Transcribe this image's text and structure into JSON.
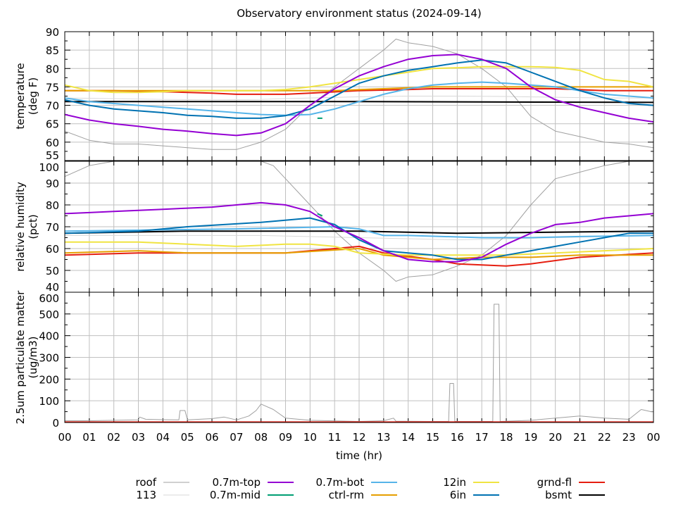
{
  "chart_data": {
    "type": "line",
    "title": "Observatory environment status (2024-09-14)",
    "xlabel": "time (hr)",
    "xlim": [
      0,
      24
    ],
    "x_tick_labels": [
      "00",
      "01",
      "02",
      "03",
      "04",
      "05",
      "06",
      "07",
      "08",
      "09",
      "10",
      "11",
      "12",
      "13",
      "14",
      "15",
      "16",
      "17",
      "18",
      "19",
      "20",
      "21",
      "22",
      "23",
      "00"
    ],
    "grid": true,
    "legend_placement": "bottom",
    "colors": {
      "roof": "#a0a0a0",
      "113": "#d8d8d8",
      "0.7m-top": "#9400d3",
      "0.7m-mid": "#009e73",
      "0.7m-bot": "#56b4e9",
      "ctrl-rm": "#e69f00",
      "12in": "#f0e442",
      "6in": "#0072b2",
      "grnd-fl": "#e51e10",
      "bsmt": "#000000"
    },
    "legend": [
      {
        "name": "roof",
        "label": "roof"
      },
      {
        "name": "113",
        "label": "113"
      },
      {
        "name": "0.7m-top",
        "label": "0.7m-top"
      },
      {
        "name": "0.7m-mid",
        "label": "0.7m-mid"
      },
      {
        "name": "0.7m-bot",
        "label": "0.7m-bot"
      },
      {
        "name": "ctrl-rm",
        "label": "ctrl-rm"
      },
      {
        "name": "12in",
        "label": "12in"
      },
      {
        "name": "6in",
        "label": "6in"
      },
      {
        "name": "grnd-fl",
        "label": "grnd-fl"
      },
      {
        "name": "bsmt",
        "label": "bsmt"
      }
    ],
    "panels": [
      {
        "ylabel": "temperature (deg F)",
        "ylabel_lines": [
          "temperature",
          "(deg F)"
        ],
        "ylim": [
          55,
          90
        ],
        "yticks": [
          55,
          60,
          65,
          70,
          75,
          80,
          85,
          90
        ],
        "ytick_labels": [
          "55",
          "60",
          "65",
          "70",
          "75",
          "80",
          "85",
          "90"
        ],
        "series": [
          {
            "name": "113",
            "x": [
              0,
              2,
              4,
              6,
              8,
              10,
              12,
              14,
              16,
              18,
              20,
              22,
              24
            ],
            "y": [
              72,
              71.8,
              71.6,
              71.5,
              71.6,
              72,
              72.3,
              72.5,
              72.5,
              72.4,
              72.2,
              72,
              72
            ]
          },
          {
            "name": "roof",
            "x": [
              0,
              1,
              2,
              3,
              4,
              5,
              6,
              7,
              8,
              9,
              10,
              11,
              12,
              13,
              13.5,
              14,
              15,
              16,
              17,
              18,
              19,
              20,
              21,
              22,
              23,
              24
            ],
            "y": [
              63,
              60.5,
              59.5,
              59.5,
              59,
              58.5,
              58,
              58,
              60,
              63.5,
              70,
              75,
              80,
              85,
              88,
              87,
              86,
              84,
              80,
              75,
              67,
              63,
              61.5,
              60,
              59.5,
              58.5
            ]
          },
          {
            "name": "bsmt",
            "x": [
              0,
              12,
              24
            ],
            "y": [
              71,
              71,
              70.8
            ]
          },
          {
            "name": "grnd-fl",
            "x": [
              0,
              2,
              4,
              6,
              7,
              8,
              9,
              10,
              12,
              14,
              15,
              17,
              20,
              22,
              24
            ],
            "y": [
              74,
              74,
              73.7,
              73.3,
              73,
              73,
              73,
              73.3,
              74,
              74.3,
              74.5,
              74.5,
              74.5,
              74,
              74
            ]
          },
          {
            "name": "ctrl-rm",
            "x": [
              0,
              4,
              8,
              11,
              13,
              15,
              24
            ],
            "y": [
              74,
              74,
              74,
              74,
              74.5,
              75,
              75
            ]
          },
          {
            "name": "12in",
            "x": [
              0,
              1,
              2,
              3,
              4,
              5,
              6,
              7,
              8,
              9,
              10,
              11,
              12,
              13,
              14,
              15,
              16,
              17,
              18,
              19,
              20,
              21,
              22,
              23,
              24
            ],
            "y": [
              75.5,
              74,
              73.5,
              73.5,
              73.7,
              74,
              74,
              74,
              74,
              74.3,
              75,
              76,
              77,
              78,
              79,
              80,
              80.2,
              80.5,
              80.5,
              80.5,
              80.3,
              79.5,
              77,
              76.5,
              75
            ]
          },
          {
            "name": "0.7m-bot",
            "x": [
              0,
              1,
              2,
              3,
              4,
              5,
              6,
              7,
              8,
              9,
              10,
              11,
              12,
              13,
              14,
              15,
              16,
              17,
              18,
              19,
              20,
              21,
              22,
              23,
              24
            ],
            "y": [
              72,
              71,
              70.5,
              70,
              69.5,
              69,
              68.5,
              68,
              67.5,
              67.3,
              67.5,
              69,
              71,
              73,
              74.5,
              75.5,
              76,
              76.3,
              76,
              75.5,
              75,
              74,
              73,
              72.5,
              72
            ]
          },
          {
            "name": "6in",
            "x": [
              0,
              1,
              2,
              3,
              4,
              5,
              6,
              7,
              8,
              9,
              10,
              11,
              12,
              13,
              14,
              15,
              16,
              17,
              18,
              19,
              20,
              21,
              22,
              23,
              24
            ],
            "y": [
              71.5,
              70,
              69,
              68.5,
              68,
              67.3,
              67,
              66.5,
              66.5,
              67.2,
              69,
              72.5,
              76,
              78,
              79.5,
              80.5,
              81.5,
              82.3,
              81.5,
              79,
              76.5,
              74,
              72,
              70.5,
              70
            ]
          },
          {
            "name": "0.7m-mid",
            "x": [
              10.3,
              10.5
            ],
            "y": [
              66.5,
              66.5
            ]
          },
          {
            "name": "0.7m-top",
            "x": [
              0,
              1,
              2,
              3,
              4,
              5,
              6,
              7,
              8,
              9,
              10,
              11,
              12,
              13,
              14,
              15,
              16,
              17,
              18,
              19,
              20,
              21,
              22,
              23,
              24
            ],
            "y": [
              67.5,
              66,
              65,
              64.3,
              63.5,
              63,
              62.3,
              61.8,
              62.5,
              65,
              70,
              74.5,
              78,
              80.5,
              82.5,
              83.5,
              83.8,
              82.5,
              80,
              75,
              71.5,
              69.5,
              68,
              66.5,
              65.5
            ]
          }
        ]
      },
      {
        "ylabel": "relative humidity (pct)",
        "ylabel_lines": [
          "relative humidity",
          "(pct)"
        ],
        "ylim": [
          40,
          100
        ],
        "yticks": [
          40,
          50,
          60,
          70,
          80,
          90,
          100
        ],
        "ytick_labels": [
          "40",
          "50",
          "60",
          "70",
          "80",
          "90",
          "100"
        ],
        "series": [
          {
            "name": "113",
            "x": [
              0,
              4,
              8,
              12,
              16,
              20,
              24
            ],
            "y": [
              66,
              66,
              66,
              65,
              64,
              65,
              66
            ]
          },
          {
            "name": "roof",
            "x": [
              0,
              1,
              2,
              8,
              8.5,
              9,
              10,
              11,
              12,
              13,
              13.5,
              14,
              15,
              16,
              17,
              18,
              19,
              20,
              21,
              22,
              23,
              24
            ],
            "y": [
              93,
              98,
              100,
              100,
              98,
              92,
              80,
              68,
              58,
              50,
              45,
              47,
              48,
              52,
              57,
              66,
              80,
              92,
              95,
              98,
              100,
              100
            ]
          },
          {
            "name": "grnd-fl",
            "x": [
              0,
              3,
              9,
              12,
              13,
              15,
              16,
              18,
              19,
              21,
              24
            ],
            "y": [
              57,
              58,
              58,
              61,
              58,
              55,
              53,
              52,
              53,
              56,
              58
            ]
          },
          {
            "name": "ctrl-rm",
            "x": [
              0,
              3,
              5,
              9,
              12,
              13,
              15,
              17,
              19,
              21,
              24
            ],
            "y": [
              58,
              59,
              58,
              58,
              60,
              57,
              55,
              56,
              56,
              57,
              57
            ]
          },
          {
            "name": "12in",
            "x": [
              0,
              3,
              5,
              7,
              9,
              10,
              11,
              12,
              14,
              16,
              18,
              20,
              22,
              24
            ],
            "y": [
              63,
              63,
              62,
              61,
              62,
              62,
              61,
              58,
              57,
              57,
              57,
              58,
              59,
              60
            ]
          },
          {
            "name": "bsmt",
            "x": [
              0,
              5,
              12,
              16,
              24
            ],
            "y": [
              67,
              68,
              68,
              67,
              68
            ]
          },
          {
            "name": "0.7m-bot",
            "x": [
              0,
              7,
              11,
              12,
              13,
              14,
              17,
              19,
              21,
              24
            ],
            "y": [
              68,
              69,
              70,
              69,
              66,
              66,
              65,
              65,
              65.5,
              66
            ]
          },
          {
            "name": "6in",
            "x": [
              0,
              3,
              5,
              8,
              10,
              11,
              12,
              13,
              14,
              15,
              16,
              17,
              18,
              19,
              20,
              21,
              22,
              23,
              24
            ],
            "y": [
              67,
              68,
              70,
              72,
              74,
              71,
              64,
              59,
              58,
              57,
              55,
              55,
              57,
              59,
              61,
              63,
              65,
              67,
              67
            ]
          },
          {
            "name": "0.7m-mid",
            "x": [
              10.3,
              10.5
            ],
            "y": [
              76,
              75
            ]
          },
          {
            "name": "0.7m-top",
            "x": [
              0,
              1,
              2,
              3,
              4,
              5,
              6,
              7,
              8,
              9,
              10,
              11,
              12,
              13,
              14,
              15,
              16,
              17,
              18,
              19,
              20,
              21,
              22,
              23,
              24
            ],
            "y": [
              76,
              76.5,
              77,
              77.5,
              78,
              78.5,
              79,
              80,
              81,
              80,
              77,
              70,
              65,
              59,
              55,
              54,
              54,
              56,
              62,
              67,
              71,
              72,
              74,
              75,
              76
            ]
          }
        ]
      },
      {
        "ylabel": "2.5um particulate matter (ug/m3)",
        "ylabel_lines": [
          "2.5um particulate matter",
          "(ug/m3)"
        ],
        "ylim": [
          0,
          600
        ],
        "yticks": [
          0,
          100,
          200,
          300,
          400,
          500,
          600
        ],
        "ytick_labels": [
          "0",
          "100",
          "200",
          "300",
          "400",
          "500",
          "600"
        ],
        "series": [
          {
            "name": "113",
            "x": [
              0,
              24
            ],
            "y": [
              3,
              3
            ]
          },
          {
            "name": "roof",
            "x": [
              0,
              1,
              2,
              3,
              3.05,
              3.3,
              4,
              4.65,
              4.7,
              4.9,
              5,
              6,
              6.5,
              7,
              7.5,
              7.8,
              8,
              8.5,
              9,
              10,
              12,
              13,
              13.4,
              13.5,
              15,
              15.65,
              15.7,
              15.85,
              15.9,
              17.45,
              17.5,
              17.7,
              17.75,
              19,
              20,
              21,
              22,
              23,
              23.5,
              23.9,
              24
            ],
            "y": [
              8,
              8,
              10,
              12,
              25,
              15,
              13,
              12,
              55,
              55,
              12,
              18,
              25,
              12,
              30,
              55,
              85,
              60,
              20,
              10,
              5,
              8,
              20,
              6,
              5,
              5,
              180,
              180,
              5,
              5,
              545,
              545,
              5,
              10,
              20,
              30,
              20,
              15,
              60,
              50,
              50
            ]
          },
          {
            "name": "grnd-fl",
            "x": [
              0,
              24
            ],
            "y": [
              2,
              2
            ]
          }
        ]
      }
    ]
  }
}
